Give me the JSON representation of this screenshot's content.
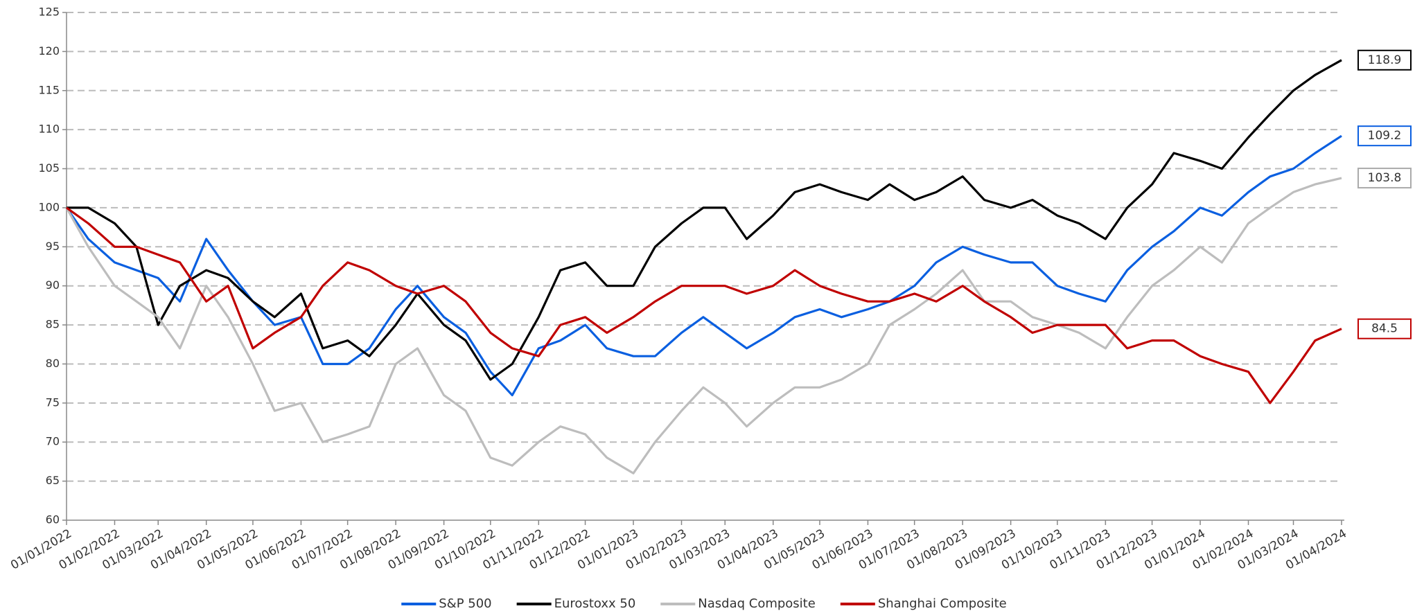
{
  "chart_data": {
    "type": "line",
    "x": [
      "01/01/2022",
      "15/01/2022",
      "01/02/2022",
      "15/02/2022",
      "01/03/2022",
      "15/03/2022",
      "01/04/2022",
      "15/04/2022",
      "01/05/2022",
      "15/05/2022",
      "01/06/2022",
      "15/06/2022",
      "01/07/2022",
      "15/07/2022",
      "01/08/2022",
      "15/08/2022",
      "01/09/2022",
      "15/09/2022",
      "01/10/2022",
      "15/10/2022",
      "01/11/2022",
      "15/11/2022",
      "01/12/2022",
      "15/12/2022",
      "01/01/2023",
      "15/01/2023",
      "01/02/2023",
      "15/02/2023",
      "01/03/2023",
      "15/03/2023",
      "01/04/2023",
      "15/04/2023",
      "01/05/2023",
      "15/05/2023",
      "01/06/2023",
      "15/06/2023",
      "01/07/2023",
      "15/07/2023",
      "01/08/2023",
      "15/08/2023",
      "01/09/2023",
      "15/09/2023",
      "01/10/2023",
      "15/10/2023",
      "01/11/2023",
      "15/11/2023",
      "01/12/2023",
      "15/12/2023",
      "01/01/2024",
      "15/01/2024",
      "01/02/2024",
      "15/02/2024",
      "01/03/2024",
      "15/03/2024",
      "01/04/2024"
    ],
    "series": [
      {
        "name": "S&P 500",
        "color": "#0a5fe0",
        "values": [
          100,
          96,
          93,
          92,
          91,
          88,
          96,
          92,
          88,
          85,
          86,
          80,
          80,
          82,
          87,
          90,
          86,
          84,
          79,
          76,
          82,
          83,
          85,
          82,
          81,
          81,
          84,
          86,
          84,
          82,
          84,
          86,
          87,
          86,
          87,
          88,
          90,
          93,
          95,
          94,
          93,
          93,
          90,
          89,
          88,
          92,
          95,
          97,
          100,
          99,
          102,
          104,
          105,
          107,
          109.2
        ]
      },
      {
        "name": "Eurostoxx 50",
        "color": "#000000",
        "values": [
          100,
          100,
          98,
          95,
          85,
          90,
          92,
          91,
          88,
          86,
          89,
          82,
          83,
          81,
          85,
          89,
          85,
          83,
          78,
          80,
          86,
          92,
          93,
          90,
          90,
          95,
          98,
          100,
          100,
          96,
          99,
          102,
          103,
          102,
          101,
          103,
          101,
          102,
          104,
          101,
          100,
          101,
          99,
          98,
          96,
          100,
          103,
          107,
          106,
          105,
          109,
          112,
          115,
          117,
          118.9
        ]
      },
      {
        "name": "Nasdaq Composite",
        "color": "#bdbdbd",
        "values": [
          100,
          95,
          90,
          88,
          86,
          82,
          90,
          86,
          80,
          74,
          75,
          70,
          71,
          72,
          80,
          82,
          76,
          74,
          68,
          67,
          70,
          72,
          71,
          68,
          66,
          70,
          74,
          77,
          75,
          72,
          75,
          77,
          77,
          78,
          80,
          85,
          87,
          89,
          92,
          88,
          88,
          86,
          85,
          84,
          82,
          86,
          90,
          92,
          95,
          93,
          98,
          100,
          102,
          103,
          103.8
        ]
      },
      {
        "name": "Shanghai Composite",
        "color": "#c00000",
        "values": [
          100,
          98,
          95,
          95,
          94,
          93,
          88,
          90,
          82,
          84,
          86,
          90,
          93,
          92,
          90,
          89,
          90,
          88,
          84,
          82,
          81,
          85,
          86,
          84,
          86,
          88,
          90,
          90,
          90,
          89,
          90,
          92,
          90,
          89,
          88,
          88,
          89,
          88,
          90,
          88,
          86,
          84,
          85,
          85,
          85,
          82,
          83,
          83,
          81,
          80,
          79,
          75,
          79,
          83,
          84.5
        ]
      }
    ],
    "xlim": [
      "01/01/2022",
      "01/04/2024"
    ],
    "xticks": [
      "01/01/2022",
      "01/02/2022",
      "01/03/2022",
      "01/04/2022",
      "01/05/2022",
      "01/06/2022",
      "01/07/2022",
      "01/08/2022",
      "01/09/2022",
      "01/10/2022",
      "01/11/2022",
      "01/12/2022",
      "01/01/2023",
      "01/02/2023",
      "01/03/2023",
      "01/04/2023",
      "01/05/2023",
      "01/06/2023",
      "01/07/2023",
      "01/08/2023",
      "01/09/2023",
      "01/10/2023",
      "01/11/2023",
      "01/12/2023",
      "01/01/2024",
      "01/02/2024",
      "01/03/2024",
      "01/04/2024"
    ],
    "ylim": [
      60,
      125
    ],
    "yticks": [
      60,
      65,
      70,
      75,
      80,
      85,
      90,
      95,
      100,
      105,
      110,
      115,
      120,
      125
    ],
    "grid": true,
    "legend": "bottom"
  }
}
